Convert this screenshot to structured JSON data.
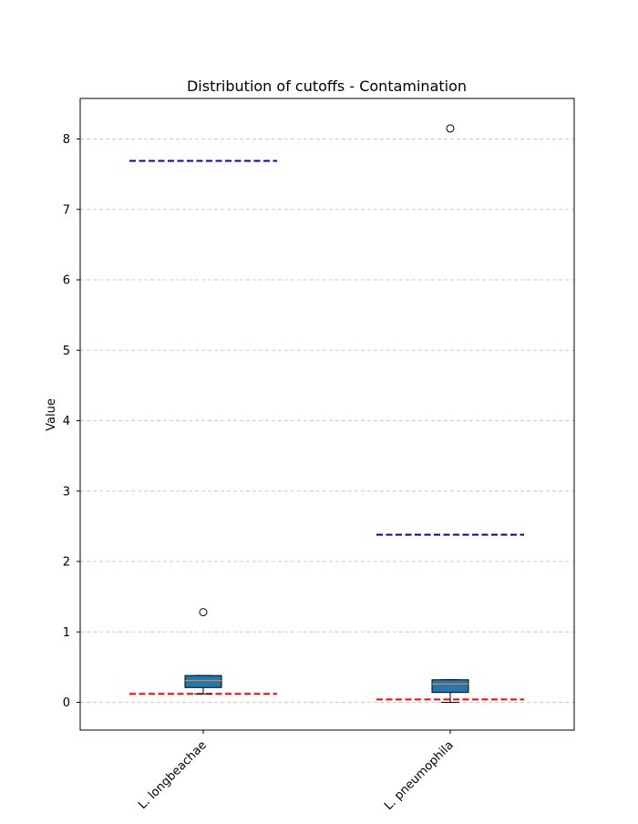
{
  "chart_data": {
    "type": "box",
    "title": "Distribution of cutoffs - Contamination",
    "xlabel": "",
    "ylabel": "Value",
    "ylim": [
      -0.4,
      8.6
    ],
    "yticks": [
      0,
      1,
      2,
      3,
      4,
      5,
      6,
      7,
      8
    ],
    "grid": "y-dashed",
    "categories": [
      "L. longbeachae",
      "L. pneumophila"
    ],
    "boxes": [
      {
        "category": "L. longbeachae",
        "whisker_low": 0.12,
        "q1": 0.21,
        "median": 0.31,
        "q3": 0.38,
        "whisker_high": 0.38,
        "outliers": [
          1.28
        ],
        "upper_ref": 7.69,
        "lower_ref": 0.12
      },
      {
        "category": "L. pneumophila",
        "whisker_low": 0.0,
        "q1": 0.14,
        "median": 0.26,
        "q3": 0.32,
        "whisker_high": 0.32,
        "outliers": [
          8.15
        ],
        "upper_ref": 2.38,
        "lower_ref": 0.04
      }
    ],
    "colors": {
      "box_fill": "#1f77b4",
      "median": "#ff7f0e",
      "upper_ref": "#0000cd",
      "lower_ref": "#ff0000",
      "grid": "#cccccc"
    }
  }
}
